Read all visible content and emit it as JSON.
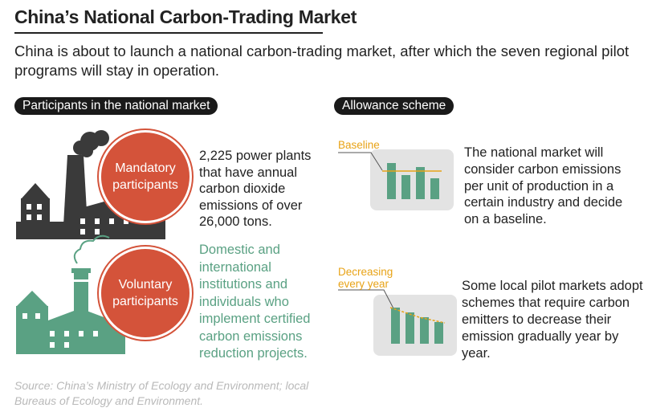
{
  "title": "China’s National Carbon-Trading Market",
  "subtitle": "China is about to launch a national carbon-trading market, after which the seven regional pilot programs will stay in operation.",
  "sections": {
    "participants": "Participants in the national market",
    "allowance": "Allowance scheme"
  },
  "mandatory": {
    "label": "Mandatory participants",
    "description": "2,225 power plants that have annual carbon dioxide emissions of over 26,000 tons."
  },
  "voluntary": {
    "label": "Voluntary participants",
    "description": "Domestic and international institutions and individuals who implement certified carbon emissions reduction projects."
  },
  "schemes": {
    "baseline": {
      "label": "Baseline",
      "description": "The national market will consider carbon emissions per unit of production in a certain industry and decide on a baseline."
    },
    "decreasing": {
      "label": "Decreasing every year",
      "description": "Some local pilot markets adopt schemes that require carbon emitters to decrease their emission gradually year by year."
    }
  },
  "source": "Source: China’s Ministry of Ecology and Environment; local Bureaus of Ecology and Environment.",
  "colors": {
    "accent_red": "#d4533a",
    "green": "#5aa183",
    "dark_factory": "#3a3a3a",
    "baseline_orange": "#e8a317",
    "chart_background": "#e3e3e3"
  }
}
